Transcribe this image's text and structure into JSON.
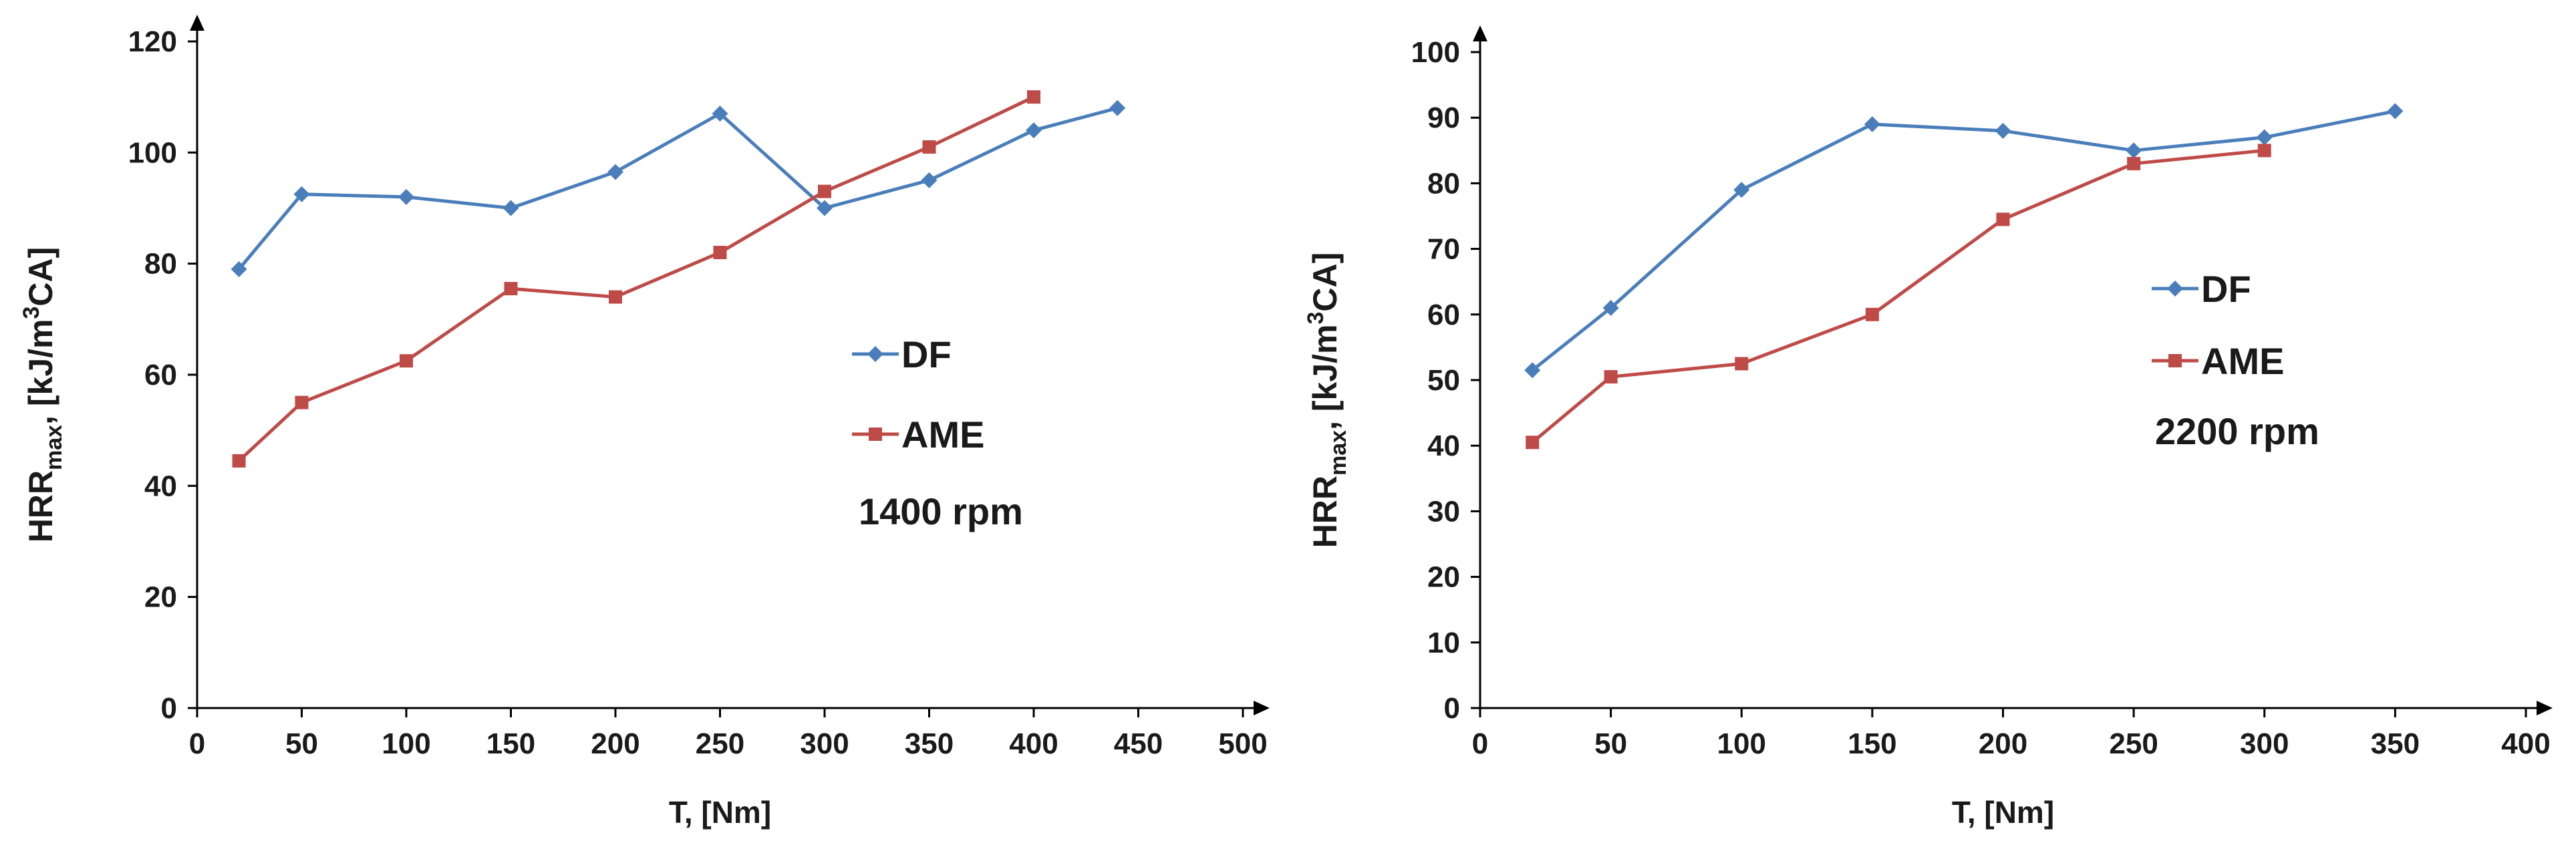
{
  "chart_data": [
    {
      "type": "line",
      "xlabel": "T, [Nm]",
      "ylabel": {
        "main": "HRR",
        "sub": "max",
        "sep": ", ",
        "unit_pre": "[kJ/m",
        "sup": "3",
        "unit_post": "CA]"
      },
      "xlim": [
        0,
        500
      ],
      "ylim": [
        0,
        120
      ],
      "xticks": [
        0,
        50,
        100,
        150,
        200,
        250,
        300,
        350,
        400,
        450,
        500
      ],
      "yticks": [
        0,
        20,
        40,
        60,
        80,
        100,
        120
      ],
      "annotation": "1400 rpm",
      "series": [
        {
          "name": "DF",
          "color": "#4a7ebb",
          "marker": "diamond",
          "x": [
            20,
            50,
            100,
            150,
            200,
            250,
            300,
            350,
            400,
            440
          ],
          "y": [
            79,
            92.5,
            92,
            90,
            96.5,
            107,
            90,
            95,
            104,
            108
          ]
        },
        {
          "name": "AME",
          "color": "#be4b48",
          "marker": "square",
          "x": [
            20,
            50,
            100,
            150,
            200,
            250,
            300,
            350,
            400
          ],
          "y": [
            44.5,
            55,
            62.5,
            75.5,
            74,
            82,
            93,
            101,
            110
          ]
        }
      ]
    },
    {
      "type": "line",
      "xlabel": "T, [Nm]",
      "ylabel": {
        "main": "HRR",
        "sub": "max",
        "sep": ", ",
        "unit_pre": "[kJ/m",
        "sup": "3",
        "unit_post": "CA]"
      },
      "xlim": [
        0,
        400
      ],
      "ylim": [
        0,
        100
      ],
      "xticks": [
        0,
        50,
        100,
        150,
        200,
        250,
        300,
        350,
        400
      ],
      "yticks": [
        0,
        10,
        20,
        30,
        40,
        50,
        60,
        70,
        80,
        90,
        100
      ],
      "annotation": "2200 rpm",
      "series": [
        {
          "name": "DF",
          "color": "#4a7ebb",
          "marker": "diamond",
          "x": [
            20,
            50,
            100,
            150,
            200,
            250,
            300,
            350
          ],
          "y": [
            51.5,
            61,
            79,
            89,
            88,
            85,
            87,
            91
          ]
        },
        {
          "name": "AME",
          "color": "#be4b48",
          "marker": "square",
          "x": [
            20,
            50,
            100,
            150,
            200,
            250,
            300
          ],
          "y": [
            40.5,
            50.5,
            52.5,
            60,
            74.5,
            83,
            85
          ]
        }
      ]
    }
  ]
}
